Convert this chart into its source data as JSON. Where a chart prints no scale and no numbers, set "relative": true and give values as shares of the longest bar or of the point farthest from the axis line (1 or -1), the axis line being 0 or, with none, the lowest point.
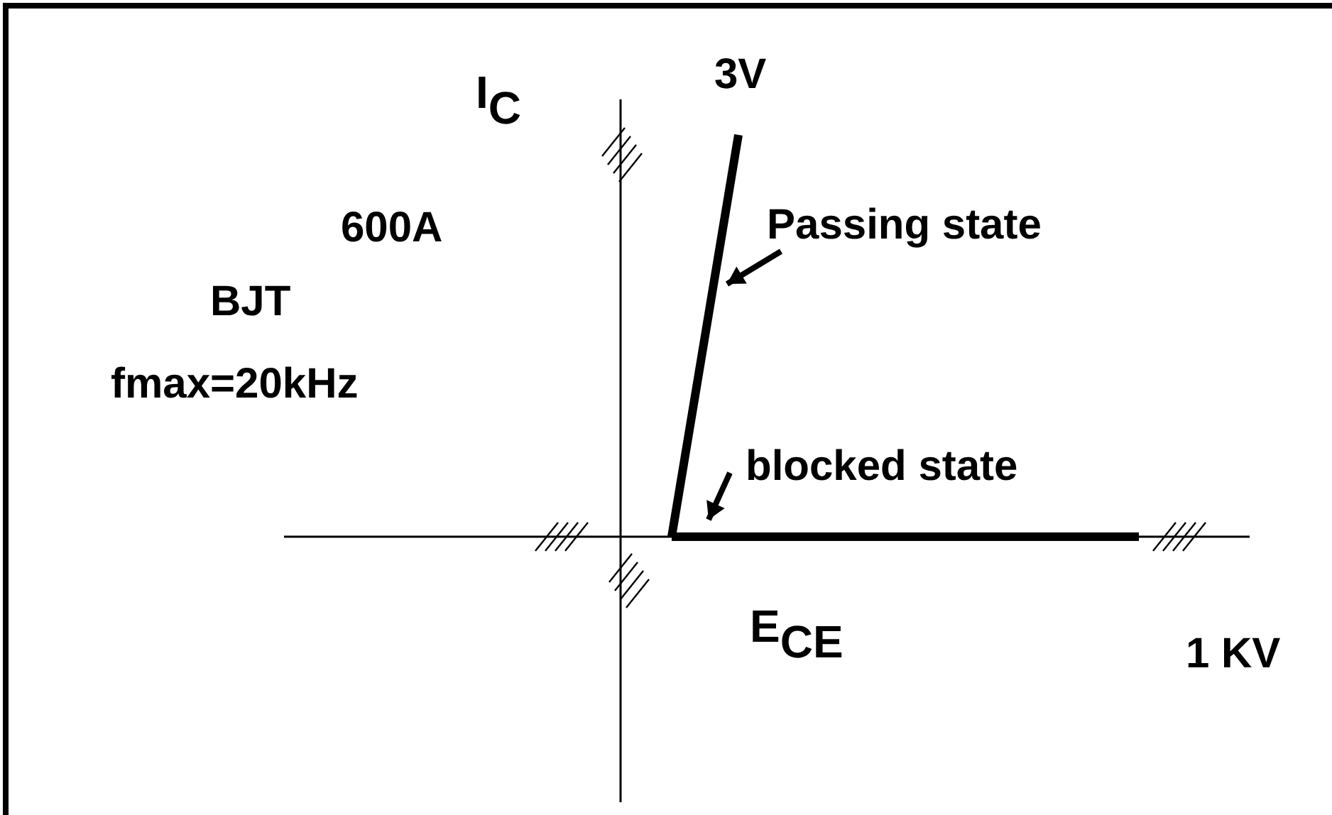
{
  "chart_data": {
    "type": "line",
    "relative": true,
    "xlabel": "E$_{CE}$",
    "ylabel": "I$_{C}$",
    "categories": [
      null,
      null,
      null,
      null,
      null,
      null,
      null,
      null
    ],
    "series": [
      {
        "name": "Passing state",
        "color": "#000000",
        "values": [
          0,
          1,
          null,
          null,
          null,
          null,
          null,
          null
        ]
      },
      {
        "name": "blocked state",
        "color": "#000000",
        "values": [
          0,
          0,
          0,
          0,
          0,
          0,
          0,
          0
        ]
      }
    ],
    "annotations": [
      "3V",
      "600A",
      "BJT",
      "fmax=20kHz",
      "1 KV"
    ]
  }
}
